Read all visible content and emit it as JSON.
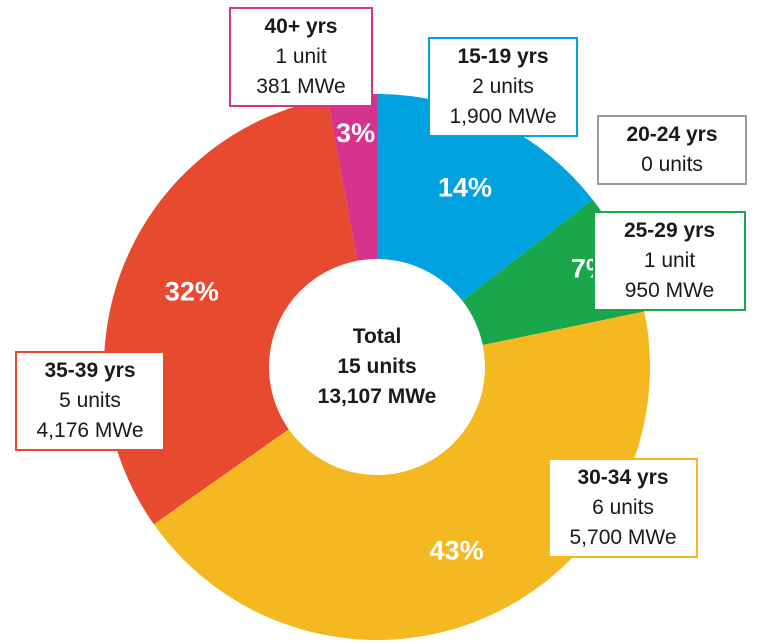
{
  "chart_data": {
    "type": "pie",
    "style": "donut",
    "center": {
      "line1": "Total",
      "line2": "15 units",
      "line3": "13,107 MWe"
    },
    "slices": [
      {
        "category": "15-19 yrs",
        "units": "2 units",
        "capacity": "1,900 MWe",
        "mwe": 1900,
        "percent_label": "14%",
        "color": "#00a3e0",
        "border": "#00a3e0"
      },
      {
        "category": "20-24 yrs",
        "units": "0 units",
        "capacity": "",
        "mwe": 0,
        "percent_label": "",
        "color": "#9b9b9b",
        "border": "#9b9b9b"
      },
      {
        "category": "25-29 yrs",
        "units": "1 unit",
        "capacity": "950 MWe",
        "mwe": 950,
        "percent_label": "7%",
        "color": "#1aa64a",
        "border": "#1aa64a"
      },
      {
        "category": "30-34 yrs",
        "units": "6 units",
        "capacity": "5,700 MWe",
        "mwe": 5700,
        "percent_label": "43%",
        "color": "#f4b920",
        "border": "#f4b920"
      },
      {
        "category": "35-39 yrs",
        "units": "5 units",
        "capacity": "4,176 MWe",
        "mwe": 4176,
        "percent_label": "32%",
        "color": "#e84a2f",
        "border": "#e84a2f"
      },
      {
        "category": "40+ yrs",
        "units": "1 unit",
        "capacity": "381 MWe",
        "mwe": 381,
        "percent_label": "3%",
        "color": "#d6338c",
        "border": "#d6338c"
      }
    ]
  }
}
